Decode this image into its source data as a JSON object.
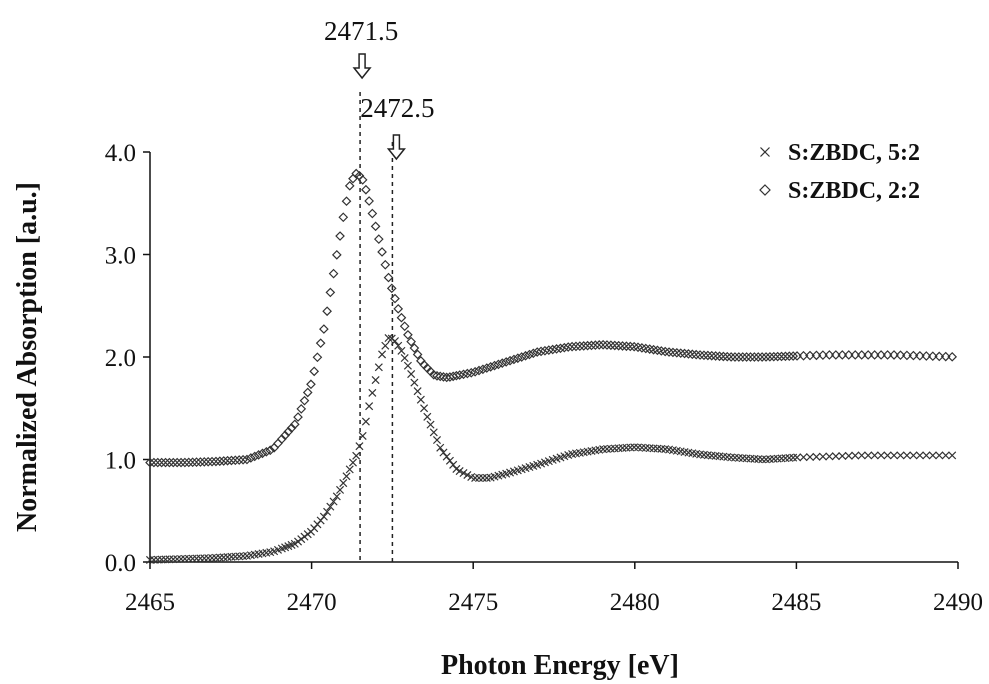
{
  "chart_data": {
    "type": "scatter",
    "title": "",
    "xlabel": "Photon Energy [eV]",
    "ylabel": "Normalized Absorption [a.u.]",
    "xlim": [
      2465,
      2490
    ],
    "ylim": [
      0.0,
      4.0
    ],
    "x_ticks": [
      "2465",
      "2470",
      "2475",
      "2480",
      "2485",
      "2490"
    ],
    "y_ticks": [
      "0.0",
      "1.0",
      "2.0",
      "3.0",
      "4.0"
    ],
    "grid": false,
    "legend_position": "top-right",
    "series": [
      {
        "name": "S:ZBDC, 5:2",
        "marker": "x",
        "points": [
          [
            2465.0,
            0.02
          ],
          [
            2466.0,
            0.03
          ],
          [
            2467.0,
            0.04
          ],
          [
            2468.0,
            0.06
          ],
          [
            2468.8,
            0.1
          ],
          [
            2469.5,
            0.18
          ],
          [
            2470.0,
            0.3
          ],
          [
            2470.4,
            0.45
          ],
          [
            2470.8,
            0.65
          ],
          [
            2471.1,
            0.85
          ],
          [
            2471.4,
            1.05
          ],
          [
            2471.6,
            1.25
          ],
          [
            2471.8,
            1.55
          ],
          [
            2472.0,
            1.8
          ],
          [
            2472.2,
            2.05
          ],
          [
            2472.4,
            2.2
          ],
          [
            2472.6,
            2.15
          ],
          [
            2472.8,
            2.05
          ],
          [
            2473.0,
            1.9
          ],
          [
            2473.3,
            1.65
          ],
          [
            2473.6,
            1.4
          ],
          [
            2474.0,
            1.1
          ],
          [
            2474.5,
            0.9
          ],
          [
            2475.0,
            0.82
          ],
          [
            2475.5,
            0.82
          ],
          [
            2476.0,
            0.86
          ],
          [
            2477.0,
            0.95
          ],
          [
            2478.0,
            1.05
          ],
          [
            2479.0,
            1.1
          ],
          [
            2480.0,
            1.12
          ],
          [
            2481.0,
            1.1
          ],
          [
            2482.0,
            1.05
          ],
          [
            2483.0,
            1.02
          ],
          [
            2484.0,
            1.0
          ],
          [
            2485.0,
            1.02
          ],
          [
            2486.0,
            1.03
          ],
          [
            2487.0,
            1.04
          ],
          [
            2488.0,
            1.04
          ],
          [
            2489.0,
            1.04
          ],
          [
            2490.0,
            1.04
          ]
        ]
      },
      {
        "name": "S:ZBDC, 2:2",
        "marker": "diamond",
        "points": [
          [
            2465.0,
            0.97
          ],
          [
            2466.0,
            0.97
          ],
          [
            2467.0,
            0.98
          ],
          [
            2468.0,
            1.0
          ],
          [
            2468.8,
            1.1
          ],
          [
            2469.5,
            1.35
          ],
          [
            2470.0,
            1.75
          ],
          [
            2470.4,
            2.3
          ],
          [
            2470.7,
            2.85
          ],
          [
            2471.0,
            3.4
          ],
          [
            2471.2,
            3.7
          ],
          [
            2471.4,
            3.8
          ],
          [
            2471.6,
            3.72
          ],
          [
            2471.8,
            3.5
          ],
          [
            2472.0,
            3.25
          ],
          [
            2472.2,
            3.0
          ],
          [
            2472.4,
            2.75
          ],
          [
            2472.7,
            2.45
          ],
          [
            2473.0,
            2.2
          ],
          [
            2473.4,
            1.95
          ],
          [
            2473.8,
            1.82
          ],
          [
            2474.2,
            1.8
          ],
          [
            2475.0,
            1.85
          ],
          [
            2476.0,
            1.95
          ],
          [
            2477.0,
            2.05
          ],
          [
            2478.0,
            2.1
          ],
          [
            2479.0,
            2.12
          ],
          [
            2480.0,
            2.1
          ],
          [
            2481.0,
            2.05
          ],
          [
            2482.0,
            2.02
          ],
          [
            2483.0,
            2.0
          ],
          [
            2484.0,
            2.0
          ],
          [
            2485.0,
            2.01
          ],
          [
            2486.0,
            2.02
          ],
          [
            2487.0,
            2.02
          ],
          [
            2488.0,
            2.02
          ],
          [
            2489.0,
            2.01
          ],
          [
            2490.0,
            2.0
          ]
        ]
      }
    ],
    "annotations": [
      {
        "label": "2471.5",
        "x": 2471.5,
        "arrow": "down",
        "guide_line": "dashed"
      },
      {
        "label": "2472.5",
        "x": 2472.5,
        "arrow": "down",
        "guide_line": "dashed"
      }
    ]
  }
}
